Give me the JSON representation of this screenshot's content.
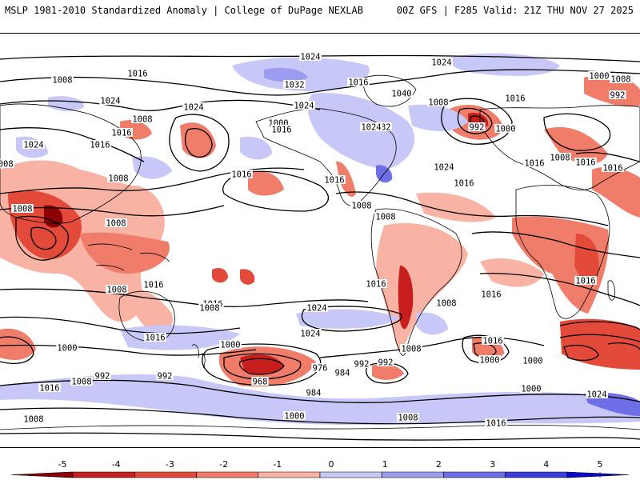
{
  "header": {
    "title": "MSLP 1981-2010 Standardized Anomaly | College of DuPage NEXLAB",
    "run": "00Z GFS | F285 Valid: 21Z THU NOV 27 2025"
  },
  "colors": {
    "neg5": "#8b0000",
    "neg4": "#c81e1e",
    "neg3": "#e34a3a",
    "neg2": "#f07d6a",
    "neg1": "#f8b3a4",
    "zero": "#ffffff",
    "pos1": "#c8c8f8",
    "pos2": "#9c9cf0",
    "pos3": "#6e6ee6",
    "pos4": "#3c3cdc",
    "pos5": "#0a0ad0",
    "land": "#000000"
  },
  "isobar_labels": [
    {
      "text": "1016"
    },
    {
      "text": "1024"
    },
    {
      "text": "1024"
    },
    {
      "text": "1008"
    },
    {
      "text": "1016"
    },
    {
      "text": "1032"
    },
    {
      "text": "1016"
    },
    {
      "text": "1008"
    },
    {
      "text": "1000"
    },
    {
      "text": "992"
    },
    {
      "text": "1024"
    },
    {
      "text": "1024"
    },
    {
      "text": "1008"
    },
    {
      "text": "1016"
    },
    {
      "text": "1040"
    },
    {
      "text": "1032"
    },
    {
      "text": "1008"
    },
    {
      "text": "1000"
    },
    {
      "text": "1008"
    },
    {
      "text": "1016"
    },
    {
      "text": "1024"
    },
    {
      "text": "1016"
    },
    {
      "text": "992"
    },
    {
      "text": "1000"
    },
    {
      "text": "1024"
    },
    {
      "text": "1016"
    },
    {
      "text": "1024"
    },
    {
      "text": "1016"
    },
    {
      "text": "1024"
    },
    {
      "text": "1016"
    },
    {
      "text": "1008"
    },
    {
      "text": "1008"
    },
    {
      "text": "1008"
    },
    {
      "text": "1016"
    },
    {
      "text": "1008"
    },
    {
      "text": "1016"
    },
    {
      "text": "1008"
    },
    {
      "text": "1016"
    },
    {
      "text": "1008"
    },
    {
      "text": "1016"
    },
    {
      "text": "1008"
    },
    {
      "text": "1016"
    },
    {
      "text": "1024"
    },
    {
      "text": "1024"
    },
    {
      "text": "1016"
    },
    {
      "text": "1008"
    },
    {
      "text": "1016"
    },
    {
      "text": "1000"
    },
    {
      "text": "1008"
    },
    {
      "text": "992"
    },
    {
      "text": "1016"
    },
    {
      "text": "1000"
    },
    {
      "text": "976"
    },
    {
      "text": "984"
    },
    {
      "text": "968"
    },
    {
      "text": "992"
    },
    {
      "text": "1016"
    },
    {
      "text": "1008"
    },
    {
      "text": "1000"
    },
    {
      "text": "992"
    },
    {
      "text": "1016"
    },
    {
      "text": "1008"
    },
    {
      "text": "992"
    },
    {
      "text": "984"
    },
    {
      "text": "1000"
    },
    {
      "text": "1024"
    },
    {
      "text": "1008"
    },
    {
      "text": "1000"
    },
    {
      "text": "1008"
    },
    {
      "text": "1016"
    },
    {
      "text": "1016"
    },
    {
      "text": "1000"
    },
    {
      "text": "1016"
    }
  ],
  "colorbar": {
    "ticks": [
      "-5",
      "-4",
      "-3",
      "-2",
      "-1",
      "0",
      "1",
      "2",
      "3",
      "4",
      "5"
    ],
    "min": -5,
    "max": 5
  }
}
